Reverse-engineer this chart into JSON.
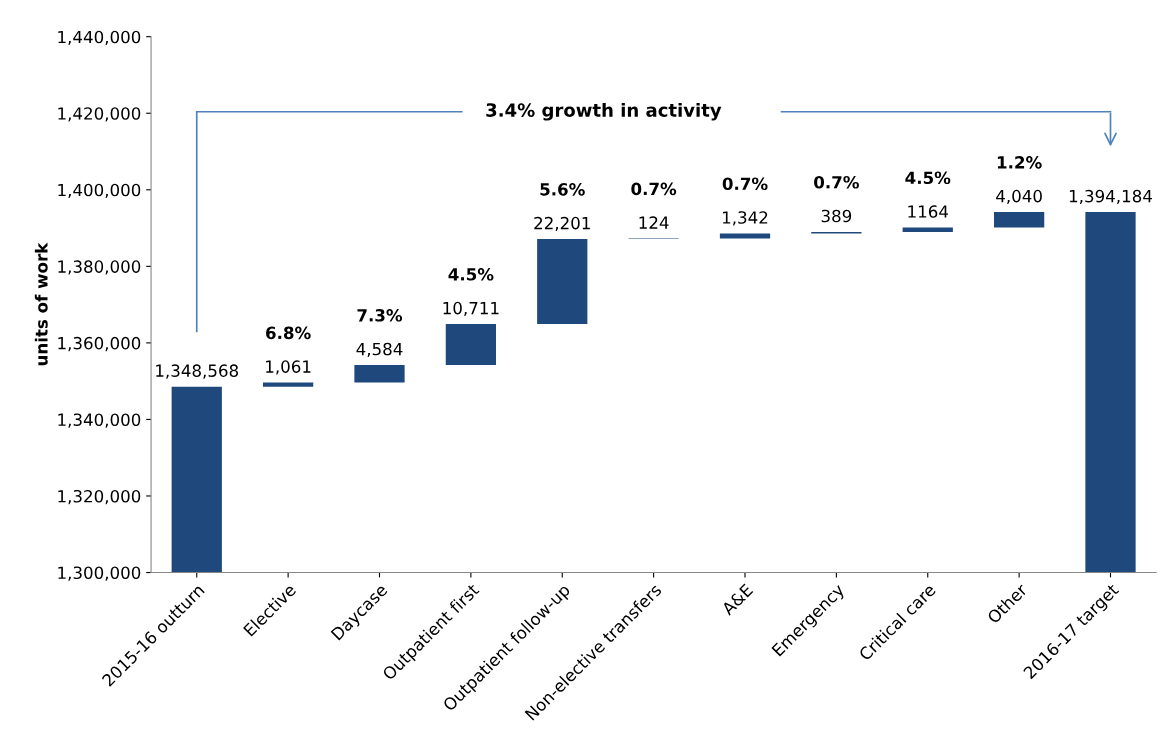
{
  "chart_data": {
    "type": "bar",
    "ylabel": "units of work",
    "categories": [
      "2015-16 outturn",
      "Elective",
      "Daycase",
      "Outpatient first",
      "Outpatient follow-up",
      "Non-elective transfers",
      "A&E",
      "Emergency",
      "Critical care",
      "Other",
      "2016-17 target"
    ],
    "base": [
      1300000,
      1348568,
      1349629,
      1354213,
      1364924,
      1387125,
      1387249,
      1388591,
      1388980,
      1390144,
      1300000
    ],
    "values": [
      48568,
      1061,
      4584,
      10711,
      22201,
      124,
      1342,
      389,
      1164,
      4040,
      94184
    ],
    "value_labels": [
      "1,348,568",
      "1,061",
      "4,584",
      "10,711",
      "22,201",
      "124",
      "1,342",
      "389",
      "1164",
      "4,040",
      "1,394,184"
    ],
    "color": "#1f497d",
    "ylim": [
      1300000,
      1440000
    ],
    "yticks": [
      {
        "value": 1300000,
        "label": "1,300,000"
      },
      {
        "value": 1320000,
        "label": "1,320,000"
      },
      {
        "value": 1340000,
        "label": "1,340,000"
      },
      {
        "value": 1360000,
        "label": "1,360,000"
      },
      {
        "value": 1380000,
        "label": "1,380,000"
      },
      {
        "value": 1400000,
        "label": "1,400,000"
      },
      {
        "value": 1420000,
        "label": "1,420,000"
      },
      {
        "value": 1440000,
        "label": "1,440,000"
      }
    ],
    "grid": false,
    "legend": false,
    "annotations": [
      "3.4% growth in activity",
      "6.8%",
      "7.3%",
      "4.5%",
      "5.6%",
      "0.7%",
      "0.7%",
      "0.7%",
      "4.5%",
      "1.2%"
    ]
  }
}
